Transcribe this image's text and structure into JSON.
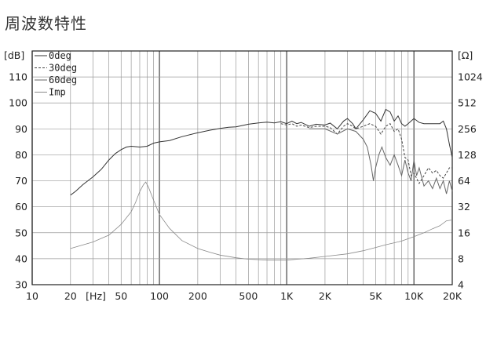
{
  "page": {
    "title": "周波数特性"
  },
  "chart_data": {
    "type": "line",
    "x_scale": "log",
    "xlim": [
      10,
      20000
    ],
    "ylim": [
      30,
      120
    ],
    "grid": true,
    "legend_placement": "top-left",
    "x_unit_label": "[Hz]",
    "y_left_label": "[dB]",
    "y_right_label": "[Ω]",
    "x_ticks": [
      {
        "v": 10,
        "label": "10"
      },
      {
        "v": 20,
        "label": "20"
      },
      {
        "v": 50,
        "label": "50"
      },
      {
        "v": 100,
        "label": "100"
      },
      {
        "v": 200,
        "label": "200"
      },
      {
        "v": 500,
        "label": "500"
      },
      {
        "v": 1000,
        "label": "1K"
      },
      {
        "v": 2000,
        "label": "2K"
      },
      {
        "v": 5000,
        "label": "5K"
      },
      {
        "v": 10000,
        "label": "10K"
      },
      {
        "v": 20000,
        "label": "20K"
      }
    ],
    "y_left_ticks": [
      {
        "v": 30,
        "label": "30"
      },
      {
        "v": 40,
        "label": "40"
      },
      {
        "v": 50,
        "label": "50"
      },
      {
        "v": 60,
        "label": "60"
      },
      {
        "v": 70,
        "label": "70"
      },
      {
        "v": 80,
        "label": "80"
      },
      {
        "v": 90,
        "label": "90"
      },
      {
        "v": 100,
        "label": "100"
      },
      {
        "v": 110,
        "label": "110"
      }
    ],
    "y_right_ticks": [
      {
        "v": 4,
        "label": "4"
      },
      {
        "v": 8,
        "label": "8"
      },
      {
        "v": 16,
        "label": "16"
      },
      {
        "v": 32,
        "label": "32"
      },
      {
        "v": 64,
        "label": "64"
      },
      {
        "v": 128,
        "label": "128"
      },
      {
        "v": 256,
        "label": "256"
      },
      {
        "v": 512,
        "label": "512"
      },
      {
        "v": 1024,
        "label": "1024"
      }
    ],
    "right_axis_map": {
      "scale": "log2",
      "value_at_30dB": 4,
      "dB_per_doubling": 10
    },
    "series": [
      {
        "name": "0deg",
        "axis": "left",
        "style": "solid",
        "color": "#333333",
        "points": [
          [
            20,
            64.5
          ],
          [
            22,
            66
          ],
          [
            25,
            68.5
          ],
          [
            30,
            71.5
          ],
          [
            35,
            74.5
          ],
          [
            40,
            78
          ],
          [
            45,
            80.5
          ],
          [
            50,
            82
          ],
          [
            55,
            83
          ],
          [
            60,
            83.3
          ],
          [
            70,
            83
          ],
          [
            80,
            83.3
          ],
          [
            90,
            84.5
          ],
          [
            100,
            85
          ],
          [
            120,
            85.5
          ],
          [
            150,
            87
          ],
          [
            200,
            88.5
          ],
          [
            250,
            89.5
          ],
          [
            300,
            90.2
          ],
          [
            350,
            90.6
          ],
          [
            400,
            90.8
          ],
          [
            450,
            91.3
          ],
          [
            500,
            91.8
          ],
          [
            600,
            92.3
          ],
          [
            700,
            92.6
          ],
          [
            800,
            92.3
          ],
          [
            900,
            92.8
          ],
          [
            1000,
            92
          ],
          [
            1100,
            93
          ],
          [
            1200,
            92
          ],
          [
            1300,
            92.5
          ],
          [
            1500,
            91
          ],
          [
            1700,
            91.8
          ],
          [
            2000,
            91.5
          ],
          [
            2200,
            92.2
          ],
          [
            2500,
            90
          ],
          [
            2800,
            93
          ],
          [
            3000,
            94
          ],
          [
            3300,
            92
          ],
          [
            3500,
            90
          ],
          [
            4000,
            93.5
          ],
          [
            4500,
            97
          ],
          [
            5000,
            96
          ],
          [
            5500,
            93
          ],
          [
            6000,
            97.5
          ],
          [
            6500,
            96.5
          ],
          [
            7000,
            93
          ],
          [
            7500,
            95
          ],
          [
            8000,
            92
          ],
          [
            8500,
            91
          ],
          [
            9000,
            92
          ],
          [
            10000,
            94
          ],
          [
            11000,
            92.5
          ],
          [
            12000,
            92
          ],
          [
            14000,
            92
          ],
          [
            16000,
            92
          ],
          [
            17000,
            93
          ],
          [
            18000,
            90
          ],
          [
            19000,
            84
          ],
          [
            20000,
            79
          ]
        ]
      },
      {
        "name": "30deg",
        "axis": "left",
        "style": "dashed",
        "color": "#444444",
        "points": [
          [
            900,
            92
          ],
          [
            1000,
            91.5
          ],
          [
            1100,
            92
          ],
          [
            1200,
            91
          ],
          [
            1300,
            91.5
          ],
          [
            1500,
            90.5
          ],
          [
            1700,
            91
          ],
          [
            2000,
            91
          ],
          [
            2200,
            90.5
          ],
          [
            2500,
            88
          ],
          [
            2800,
            91
          ],
          [
            3000,
            92
          ],
          [
            3300,
            91
          ],
          [
            3500,
            90
          ],
          [
            4000,
            91
          ],
          [
            4500,
            92
          ],
          [
            5000,
            91
          ],
          [
            5500,
            88
          ],
          [
            6000,
            91
          ],
          [
            6500,
            92
          ],
          [
            7000,
            89
          ],
          [
            7500,
            90
          ],
          [
            8000,
            86
          ],
          [
            8500,
            79
          ],
          [
            9000,
            78
          ],
          [
            9500,
            72
          ],
          [
            10000,
            73
          ],
          [
            11000,
            69
          ],
          [
            12000,
            72
          ],
          [
            13000,
            75
          ],
          [
            14000,
            73
          ],
          [
            15000,
            74
          ],
          [
            16000,
            72
          ],
          [
            17000,
            71
          ],
          [
            18000,
            73
          ],
          [
            19000,
            75
          ],
          [
            20000,
            75
          ]
        ]
      },
      {
        "name": "60deg",
        "axis": "left",
        "style": "solid",
        "color": "#666666",
        "points": [
          [
            1500,
            90
          ],
          [
            1800,
            90
          ],
          [
            2000,
            90
          ],
          [
            2500,
            88
          ],
          [
            3000,
            90
          ],
          [
            3500,
            89
          ],
          [
            4000,
            86
          ],
          [
            4300,
            83
          ],
          [
            4600,
            76
          ],
          [
            4800,
            70
          ],
          [
            5000,
            75
          ],
          [
            5300,
            80
          ],
          [
            5600,
            83
          ],
          [
            6000,
            79
          ],
          [
            6500,
            76
          ],
          [
            7000,
            80
          ],
          [
            7500,
            76
          ],
          [
            8000,
            72
          ],
          [
            8500,
            78
          ],
          [
            9000,
            73
          ],
          [
            9500,
            70
          ],
          [
            10000,
            78
          ],
          [
            10500,
            72
          ],
          [
            11000,
            75
          ],
          [
            12000,
            68
          ],
          [
            13000,
            70
          ],
          [
            14000,
            67
          ],
          [
            15000,
            71
          ],
          [
            16000,
            67
          ],
          [
            17000,
            70
          ],
          [
            18000,
            65
          ],
          [
            19000,
            70
          ],
          [
            20000,
            66
          ]
        ]
      },
      {
        "name": "Imp",
        "axis": "right",
        "style": "solid",
        "color": "#8a8a8a",
        "points": [
          [
            20,
            10.5
          ],
          [
            30,
            12.5
          ],
          [
            40,
            15
          ],
          [
            50,
            20
          ],
          [
            60,
            28
          ],
          [
            65,
            36
          ],
          [
            70,
            48
          ],
          [
            75,
            58
          ],
          [
            78,
            62
          ],
          [
            82,
            54
          ],
          [
            90,
            38
          ],
          [
            100,
            26
          ],
          [
            120,
            18
          ],
          [
            150,
            13
          ],
          [
            200,
            10.5
          ],
          [
            250,
            9.5
          ],
          [
            300,
            8.8
          ],
          [
            400,
            8.2
          ],
          [
            500,
            7.9
          ],
          [
            600,
            7.8
          ],
          [
            700,
            7.7
          ],
          [
            800,
            7.7
          ],
          [
            1000,
            7.7
          ],
          [
            1500,
            8.1
          ],
          [
            2000,
            8.5
          ],
          [
            3000,
            9.1
          ],
          [
            4000,
            9.9
          ],
          [
            5000,
            10.8
          ],
          [
            6000,
            11.6
          ],
          [
            8000,
            12.8
          ],
          [
            10000,
            14.4
          ],
          [
            12000,
            16
          ],
          [
            14000,
            17.8
          ],
          [
            16000,
            19.3
          ],
          [
            18000,
            22
          ],
          [
            20000,
            22.5
          ]
        ]
      }
    ]
  }
}
